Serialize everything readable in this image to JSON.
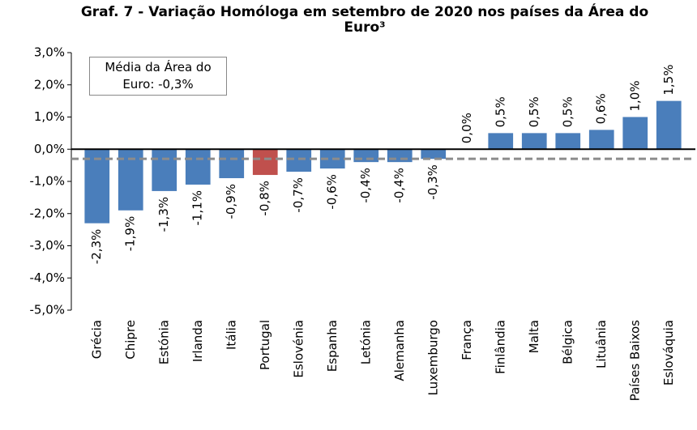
{
  "chart_data": {
    "type": "bar",
    "title": "Graf. 7 - Variação Homóloga em setembro de 2020 nos países da Área do Euro³",
    "categories": [
      "Grécia",
      "Chipre",
      "Estónia",
      "Irlanda",
      "Itália",
      "Portugal",
      "Eslovénia",
      "Espanha",
      "Letónia",
      "Alemanha",
      "Luxemburgo",
      "França",
      "Finlândia",
      "Malta",
      "Bélgica",
      "Lituânia",
      "Países Baixos",
      "Eslováquia"
    ],
    "values": [
      -2.3,
      -1.9,
      -1.3,
      -1.1,
      -0.9,
      -0.8,
      -0.7,
      -0.6,
      -0.4,
      -0.4,
      -0.3,
      0.0,
      0.5,
      0.5,
      0.5,
      0.6,
      1.0,
      1.5
    ],
    "value_labels": [
      "-2,3%",
      "-1,9%",
      "-1,3%",
      "-1,1%",
      "-0,9%",
      "-0,8%",
      "-0,7%",
      "-0,6%",
      "-0,4%",
      "-0,4%",
      "-0,3%",
      "0,0%",
      "0,5%",
      "0,5%",
      "0,5%",
      "0,6%",
      "1,0%",
      "1,5%"
    ],
    "colors": [
      "#4a7ebb",
      "#4a7ebb",
      "#4a7ebb",
      "#4a7ebb",
      "#4a7ebb",
      "#c0504d",
      "#4a7ebb",
      "#4a7ebb",
      "#4a7ebb",
      "#4a7ebb",
      "#4a7ebb",
      "#4a7ebb",
      "#4a7ebb",
      "#4a7ebb",
      "#4a7ebb",
      "#4a7ebb",
      "#4a7ebb",
      "#4a7ebb"
    ],
    "ylim": [
      -5,
      3
    ],
    "yticks": [
      {
        "value": -5,
        "label": "-5,0%"
      },
      {
        "value": -4,
        "label": "-4,0%"
      },
      {
        "value": -3,
        "label": "-3,0%"
      },
      {
        "value": -2,
        "label": "-2,0%"
      },
      {
        "value": -1,
        "label": "-1,0%"
      },
      {
        "value": 0,
        "label": "0,0%"
      },
      {
        "value": 1,
        "label": "1,0%"
      },
      {
        "value": 2,
        "label": "2,0%"
      },
      {
        "value": 3,
        "label": "3,0%"
      }
    ],
    "average": {
      "value": -0.3,
      "label": "Média da Área do Euro: -0,3%",
      "color": "#8c8c8c"
    },
    "grid": false
  }
}
